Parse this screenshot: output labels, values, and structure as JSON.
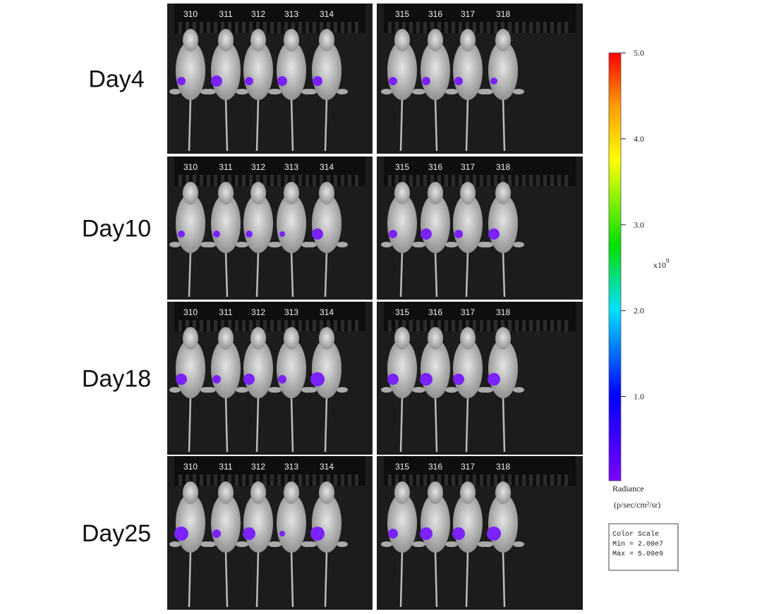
{
  "rows": [
    {
      "label": "Day4",
      "panels": [
        {
          "ids": [
            "310",
            "311",
            "312",
            "313",
            "314"
          ]
        },
        {
          "ids": [
            "315",
            "316",
            "317",
            "318"
          ]
        }
      ]
    },
    {
      "label": "Day10",
      "panels": [
        {
          "ids": [
            "310",
            "311",
            "312",
            "313",
            "314"
          ]
        },
        {
          "ids": [
            "315",
            "316",
            "317",
            "318"
          ]
        }
      ]
    },
    {
      "label": "Day18",
      "panels": [
        {
          "ids": [
            "310",
            "311",
            "312",
            "313",
            "314"
          ]
        },
        {
          "ids": [
            "315",
            "316",
            "317",
            "318"
          ]
        }
      ]
    },
    {
      "label": "Day25",
      "panels": [
        {
          "ids": [
            "310",
            "311",
            "312",
            "313",
            "314"
          ]
        },
        {
          "ids": [
            "315",
            "316",
            "317",
            "318"
          ]
        }
      ]
    }
  ],
  "colorbar": {
    "lim": [
      0.02,
      5
    ],
    "ticks": [
      {
        "value": 5,
        "label": "5.0"
      },
      {
        "value": 4,
        "label": "4.0"
      },
      {
        "value": 3,
        "label": "3.0"
      },
      {
        "value": 2,
        "label": "2.0"
      },
      {
        "value": 1,
        "label": "1.0"
      }
    ],
    "multiplier": "x10",
    "exponent": "9",
    "unit_title": "Radiance",
    "unit": "(p/sec/cm²/sr)",
    "scale_box": {
      "title": "Color Scale",
      "min": "Min = 2.00e7",
      "max": "Max = 5.00e9"
    }
  }
}
